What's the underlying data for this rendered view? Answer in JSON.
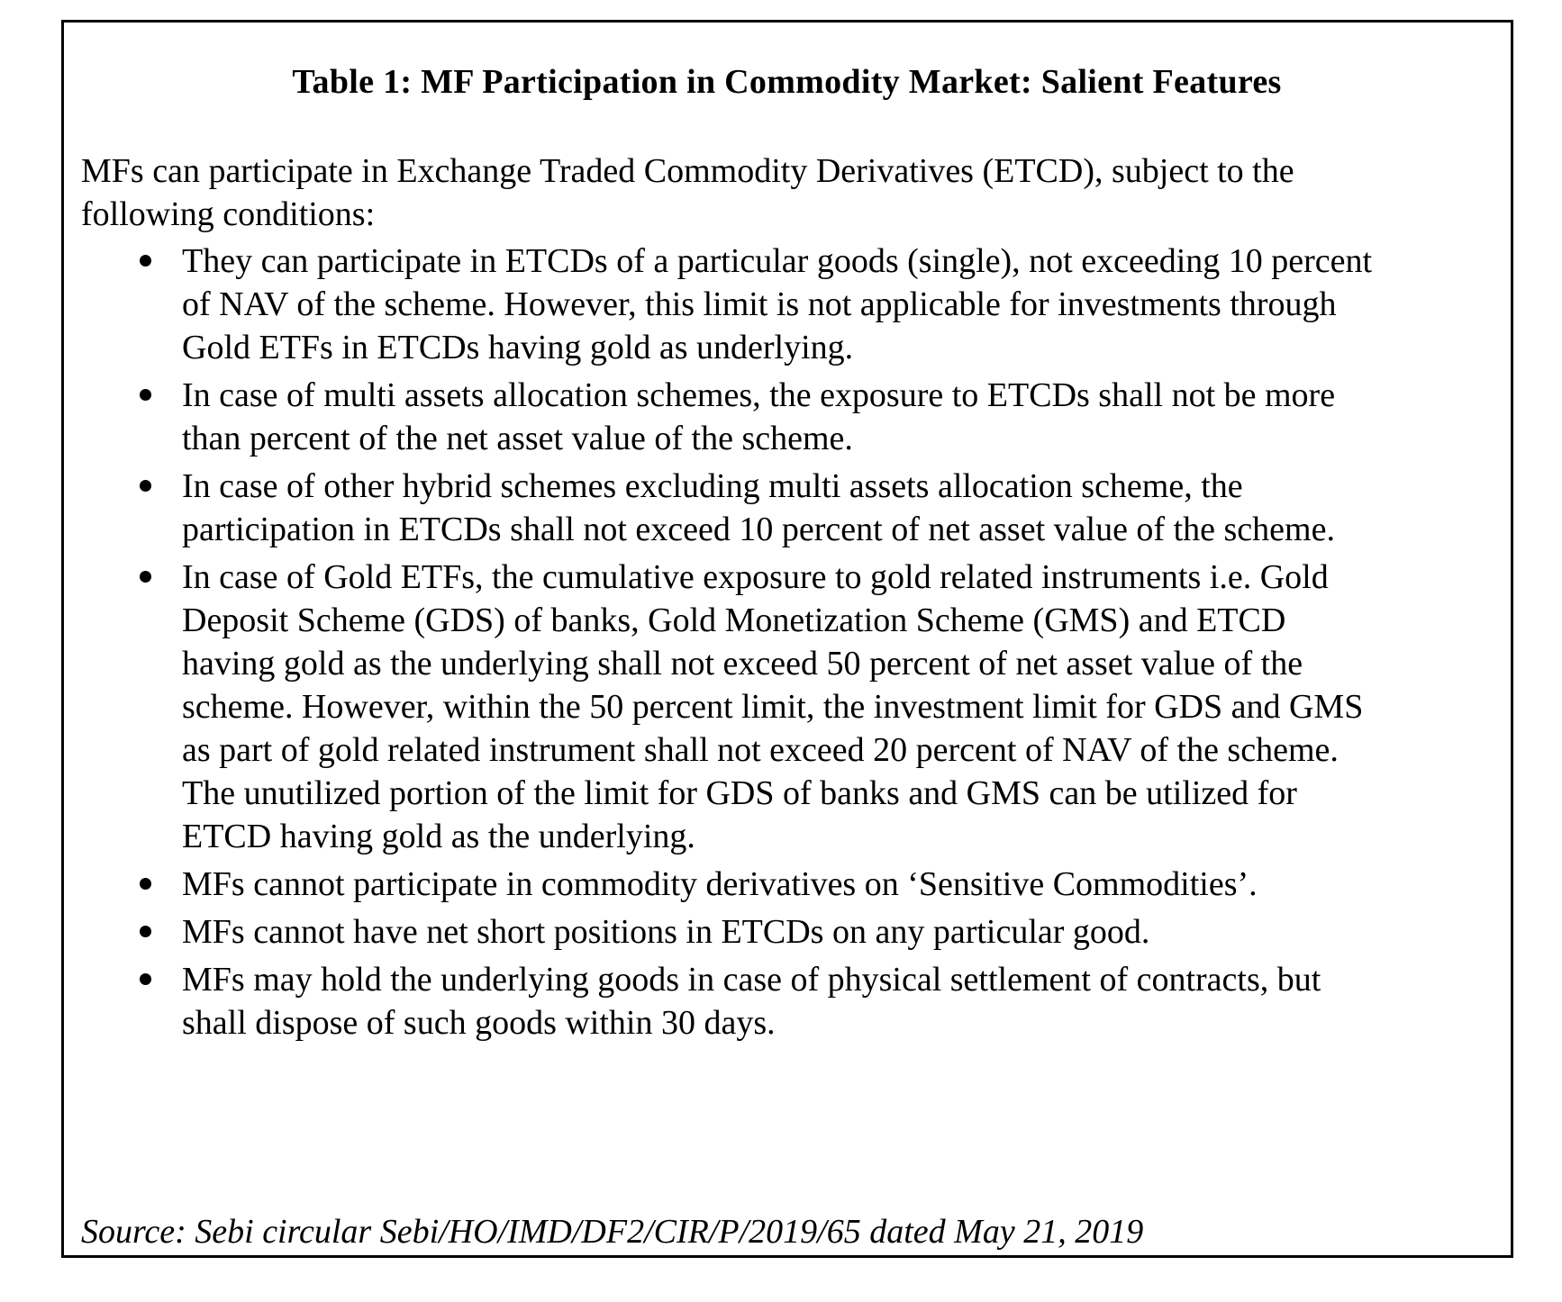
{
  "colors": {
    "text": "#000000",
    "border": "#000000",
    "background": "#ffffff"
  },
  "table": {
    "title": "Table 1: MF Participation in Commodity Market: Salient Features",
    "intro": "MFs can participate in Exchange Traded Commodity Derivatives (ETCD), subject to the following conditions:",
    "bullets": [
      "They can participate in ETCDs of a particular goods (single), not exceeding 10 percent of NAV of the scheme. However, this limit is not applicable for investments through Gold ETFs in ETCDs having gold as underlying.",
      "In case of multi assets allocation schemes, the exposure to ETCDs shall not be more than percent of the net asset value of the scheme.",
      "In case of other hybrid schemes excluding multi assets allocation scheme, the participation in ETCDs shall not exceed 10 percent of net asset value of the scheme.",
      "In case of Gold ETFs, the cumulative exposure to gold related instruments i.e. Gold Deposit Scheme (GDS) of banks, Gold Monetization Scheme (GMS) and ETCD having gold as the underlying shall not exceed 50 percent of net asset value of the scheme. However, within the 50 percent limit, the investment limit for GDS and GMS as part of gold related instrument shall not exceed 20 percent of NAV of the scheme. The unutilized portion of the limit for GDS of banks and GMS can be utilized for ETCD having gold as the underlying.",
      "MFs cannot participate in commodity derivatives on ‘Sensitive Commodities’.",
      "MFs cannot have net short positions in ETCDs on any particular good.",
      "MFs may hold the underlying goods in case of physical settlement of contracts, but shall dispose of such goods within 30 days.",
      ""
    ],
    "source": "Source: Sebi circular Sebi/HO/IMD/DF2/CIR/P/2019/65 dated May 21, 2019"
  }
}
